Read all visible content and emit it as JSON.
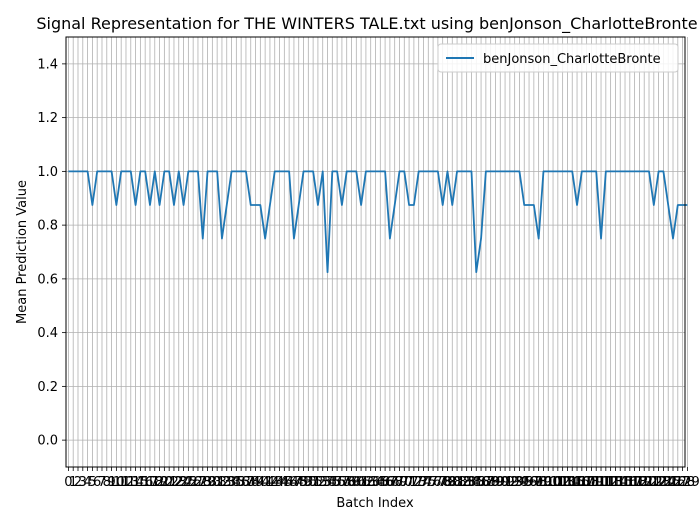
{
  "chart_data": {
    "type": "line",
    "title": "Signal Representation for THE WINTERS TALE.txt using benJonson_CharlotteBronte",
    "xlabel": "Batch Index",
    "ylabel": "Mean Prediction Value",
    "ylim": [
      -0.1,
      1.5
    ],
    "xlim": [
      -0.5,
      128.5
    ],
    "yticks": [
      "0.0",
      "0.2",
      "0.4",
      "0.6",
      "0.8",
      "1.0",
      "1.2",
      "1.4"
    ],
    "grid": true,
    "legend_position": "top-right",
    "series": [
      {
        "name": "benJonson_CharlotteBronte",
        "color": "#1f77b4",
        "values": [
          1,
          1,
          1,
          1,
          1,
          0.875,
          1,
          1,
          1,
          1,
          0.875,
          1,
          1,
          1,
          0.875,
          1,
          1,
          0.875,
          1,
          0.875,
          1,
          1,
          0.875,
          1,
          0.875,
          1,
          1,
          1,
          0.75,
          1,
          1,
          1,
          0.75,
          0.875,
          1,
          1,
          1,
          1,
          0.875,
          0.875,
          0.875,
          0.75,
          0.875,
          1,
          1,
          1,
          1,
          0.75,
          0.875,
          1,
          1,
          1,
          0.875,
          1,
          0.625,
          1,
          1,
          0.875,
          1,
          1,
          1,
          0.875,
          1,
          1,
          1,
          1,
          1,
          0.75,
          0.875,
          1,
          1,
          0.875,
          0.875,
          1,
          1,
          1,
          1,
          1,
          0.875,
          1,
          0.875,
          1,
          1,
          1,
          1,
          0.625,
          0.75,
          1,
          1,
          1,
          1,
          1,
          1,
          1,
          1,
          0.875,
          0.875,
          0.875,
          0.75,
          1,
          1,
          1,
          1,
          1,
          1,
          1,
          0.875,
          1,
          1,
          1,
          1,
          0.75,
          1,
          1,
          1,
          1,
          1,
          1,
          1,
          1,
          1,
          1,
          0.875,
          1,
          1,
          0.875,
          0.75,
          0.875,
          0.875,
          0.875
        ]
      }
    ]
  }
}
